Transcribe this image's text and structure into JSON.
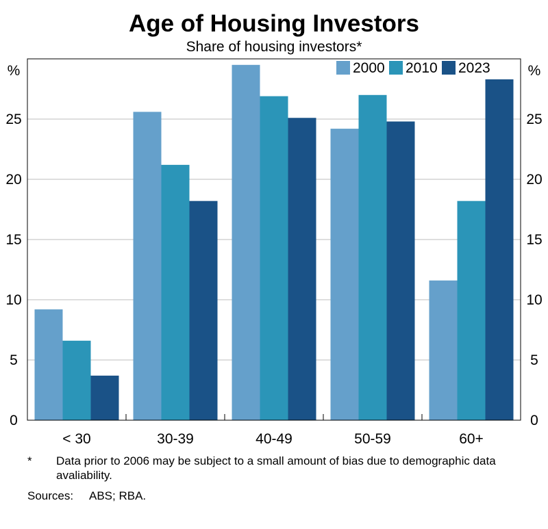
{
  "chart_data": {
    "type": "bar",
    "title": "Age of Housing Investors",
    "subtitle": "Share of housing investors*",
    "ylabel_left": "%",
    "ylabel_right": "%",
    "ylim": [
      0,
      30
    ],
    "yticks": [
      0,
      5,
      10,
      15,
      20,
      25
    ],
    "grid": true,
    "legend_position": "top-right",
    "categories": [
      "< 30",
      "30-39",
      "40-49",
      "50-59",
      "60+"
    ],
    "series": [
      {
        "name": "2000",
        "color": "#65a0cb",
        "values": [
          9.2,
          25.6,
          29.5,
          24.2,
          11.6
        ]
      },
      {
        "name": "2010",
        "color": "#2b95b8",
        "values": [
          6.6,
          21.2,
          26.9,
          27.0,
          18.2
        ]
      },
      {
        "name": "2023",
        "color": "#1a5287",
        "values": [
          3.7,
          18.2,
          25.1,
          24.8,
          28.3
        ]
      }
    ]
  },
  "footnotes": {
    "asterisk_mark": "*",
    "asterisk_text": "Data prior to 2006 may be subject to a small amount of bias due to demographic data avaliability.",
    "sources_label": "Sources:",
    "sources_text": "ABS; RBA."
  }
}
